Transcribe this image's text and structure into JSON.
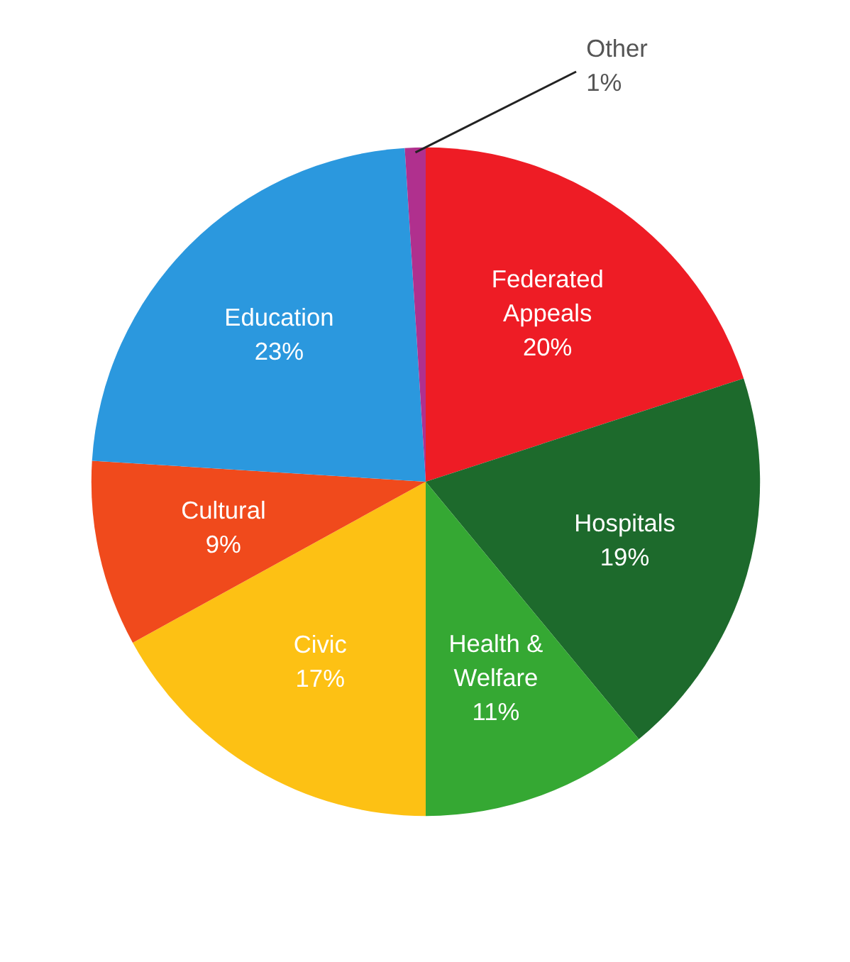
{
  "chart_data": {
    "type": "pie",
    "categories": [
      "Federated Appeals",
      "Hospitals",
      "Health & Welfare",
      "Civic",
      "Cultural",
      "Education",
      "Other"
    ],
    "values": [
      20,
      19,
      11,
      17,
      9,
      23,
      1
    ],
    "colors": [
      "#ee1c25",
      "#1d6a2c",
      "#35a833",
      "#fdc114",
      "#f04a1c",
      "#2b98de",
      "#b0308e"
    ],
    "value_labels": [
      "20%",
      "19%",
      "11%",
      "17%",
      "9%",
      "23%",
      "1%"
    ],
    "legend": false
  }
}
